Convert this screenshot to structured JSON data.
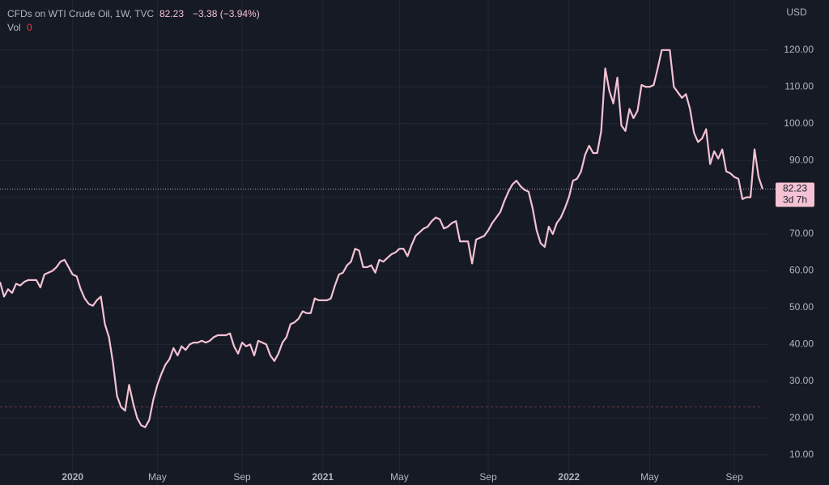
{
  "chart_data": {
    "type": "line",
    "title": "CFDs on WTI Crude Oil, 1W, TVC",
    "last_price": 82.23,
    "change": "−3.38 (−3.94%)",
    "volume_label": "Vol",
    "volume_value": 0,
    "countdown": "3d 7h",
    "y_axis_label": "USD",
    "color": "#f4c2d3",
    "volume_line": 23,
    "grid": true,
    "ylim": [
      1.8,
      133.6
    ],
    "yticks": [
      {
        "value": 10,
        "label": "10.00"
      },
      {
        "value": 20,
        "label": "20.00"
      },
      {
        "value": 30,
        "label": "30.00"
      },
      {
        "value": 40,
        "label": "40.00"
      },
      {
        "value": 50,
        "label": "50.00"
      },
      {
        "value": 60,
        "label": "60.00"
      },
      {
        "value": 70,
        "label": "70.00"
      },
      {
        "value": 80,
        "label": "80.00"
      },
      {
        "value": 90,
        "label": "90.00"
      },
      {
        "value": 100,
        "label": "100.00"
      },
      {
        "value": 110,
        "label": "110.00"
      },
      {
        "value": 120,
        "label": "120.00"
      }
    ],
    "categories": [
      null,
      null,
      null,
      null,
      null,
      null,
      null,
      null,
      null,
      null,
      null,
      null,
      null,
      null,
      null,
      null,
      null,
      null,
      "2020",
      null,
      null,
      null,
      null,
      null,
      null,
      null,
      null,
      null,
      null,
      null,
      null,
      null,
      null,
      null,
      null,
      null,
      null,
      null,
      null,
      "May",
      null,
      null,
      null,
      null,
      null,
      null,
      null,
      null,
      null,
      null,
      null,
      null,
      null,
      null,
      null,
      null,
      null,
      null,
      null,
      null,
      "Sep",
      null,
      null,
      null,
      null,
      null,
      null,
      null,
      null,
      null,
      null,
      null,
      null,
      null,
      null,
      null,
      null,
      null,
      null,
      null,
      "2021",
      null,
      null,
      null,
      null,
      null,
      null,
      null,
      null,
      null,
      null,
      null,
      null,
      null,
      null,
      null,
      null,
      null,
      null,
      "May",
      null,
      null,
      null,
      null,
      null,
      null,
      null,
      null,
      null,
      null,
      null,
      null,
      null,
      null,
      null,
      null,
      null,
      null,
      null,
      null,
      null,
      "Sep",
      null,
      null,
      null,
      null,
      null,
      null,
      null,
      null,
      null,
      null,
      null,
      null,
      null,
      null,
      null,
      null,
      null,
      null,
      null,
      "2022",
      null,
      null,
      null,
      null,
      null,
      null,
      null,
      null,
      null,
      null,
      null,
      null,
      null,
      null,
      null,
      null,
      null,
      null,
      null,
      "May",
      null,
      null,
      null,
      null,
      null,
      null,
      null,
      null,
      null,
      null,
      null,
      null,
      null,
      null,
      null,
      null,
      null,
      null,
      null,
      null,
      "Sep",
      null,
      null,
      null,
      null,
      null,
      null,
      null
    ],
    "values": [
      57,
      53,
      55,
      54,
      56.5,
      56,
      57,
      57.5,
      57.5,
      57.5,
      55.5,
      59,
      59.5,
      60,
      61,
      62.5,
      63,
      61,
      59,
      58.5,
      55,
      52.5,
      51,
      50.5,
      52,
      53,
      45.5,
      42,
      35,
      26,
      23,
      22,
      29,
      24,
      20,
      18,
      17.5,
      19.5,
      25,
      29,
      32,
      34.5,
      36,
      39,
      37,
      39.5,
      38.5,
      40,
      40.5,
      40.5,
      41,
      40.5,
      41,
      42,
      42.5,
      42.5,
      42.5,
      43,
      39.5,
      37.5,
      40.5,
      39.5,
      40,
      37,
      41,
      40.5,
      40,
      37,
      35.5,
      37.5,
      40.5,
      42,
      45.5,
      46,
      47,
      49,
      48.5,
      48.5,
      52.5,
      52,
      52,
      52,
      52.5,
      56,
      59,
      59.5,
      61.5,
      62.5,
      66,
      65.5,
      61,
      61,
      61.5,
      59.5,
      63,
      62.5,
      63.5,
      64.5,
      65,
      66,
      66,
      64,
      67,
      69.5,
      70.5,
      71.5,
      72,
      73.5,
      74.5,
      74,
      71.5,
      72,
      73,
      73.5,
      68,
      68,
      68,
      62,
      68.5,
      69,
      69.5,
      71,
      73,
      74.5,
      76,
      79,
      81.5,
      83.5,
      84.5,
      83,
      82,
      81.5,
      77,
      71,
      67.5,
      66.5,
      72,
      70,
      73,
      74.5,
      77,
      80,
      84.5,
      85,
      87,
      91.5,
      94,
      92,
      92,
      98,
      115,
      109,
      105.5,
      112.5,
      99.5,
      98,
      104,
      101.5,
      103.5,
      110.5,
      110,
      110,
      110.5,
      115,
      120,
      120,
      120,
      110,
      108.5,
      107,
      108,
      104,
      97.5,
      95,
      96,
      98.5,
      89,
      92.5,
      90.5,
      93,
      87,
      86.5,
      85.5,
      85,
      79.5,
      80,
      80,
      93,
      85.5,
      82.23
    ]
  }
}
